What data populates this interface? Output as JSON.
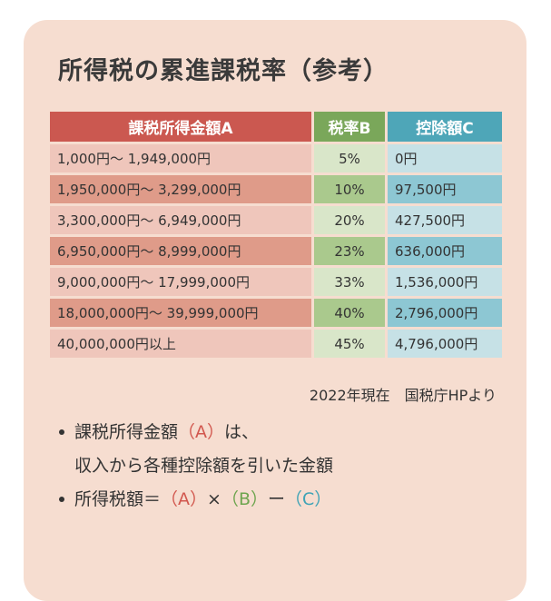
{
  "title": "所得税の累進課税率（参考）",
  "table": {
    "header": [
      "課税所得金額A",
      "税率B",
      "控除額C"
    ],
    "rows": [
      [
        "1,000円～ 1,949,000円",
        "5%",
        "0円"
      ],
      [
        "1,950,000円～ 3,299,000円",
        "10%",
        "97,500円"
      ],
      [
        "3,300,000円～ 6,949,000円",
        "20%",
        "427,500円"
      ],
      [
        "6,950,000円～ 8,999,000円",
        "23%",
        "636,000円"
      ],
      [
        "9,000,000円～ 17,999,000円",
        "33%",
        "1,536,000円"
      ],
      [
        "18,000,000円～ 39,999,000円",
        "40%",
        "2,796,000円"
      ],
      [
        "40,000,000円以上",
        "45%",
        "4,796,000円"
      ]
    ]
  },
  "source": "2022年現在　国税庁HPより",
  "notes": [
    {
      "lines": [
        [
          "課税所得金額",
          "（A）",
          "は、"
        ],
        [
          "収入から各種控除額を引いた金額"
        ]
      ]
    },
    {
      "lines": [
        [
          "所得税額＝",
          "（A）",
          "×",
          "（B）",
          "ー",
          "（C）"
        ]
      ]
    }
  ]
}
